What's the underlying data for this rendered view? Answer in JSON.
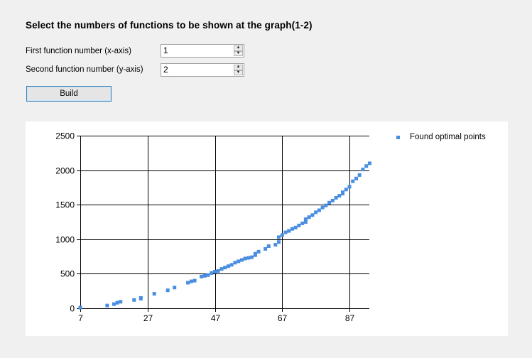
{
  "form": {
    "heading": "Select the numbers of functions to be shown at the graph(1-2)",
    "first_label": "First function number (x-axis)",
    "first_value": "1",
    "second_label": "Second function number (y-axis)",
    "second_value": "2",
    "build_label": "Build"
  },
  "icons": {
    "spin_up": "arrow-up-icon",
    "spin_down": "arrow-down-icon"
  },
  "colors": {
    "series": "#4a8ee0",
    "background": "#f0f0f0",
    "chart_background": "#ffffff",
    "grid": "#000000"
  },
  "chart_data": {
    "type": "scatter",
    "x_ticks": [
      7,
      27,
      47,
      67,
      87
    ],
    "y_ticks": [
      0,
      500,
      1000,
      1500,
      2000,
      2500
    ],
    "xlim": [
      7,
      93
    ],
    "ylim": [
      0,
      2500
    ],
    "grid": true,
    "legend_position": "top-right",
    "series": [
      {
        "name": "Found optimal points",
        "color": "#4a8ee0",
        "points": [
          [
            7,
            10
          ],
          [
            15,
            40
          ],
          [
            17,
            60
          ],
          [
            18,
            80
          ],
          [
            19,
            95
          ],
          [
            23,
            120
          ],
          [
            25,
            140
          ],
          [
            25,
            150
          ],
          [
            29,
            210
          ],
          [
            33,
            260
          ],
          [
            35,
            300
          ],
          [
            39,
            370
          ],
          [
            40,
            390
          ],
          [
            41,
            400
          ],
          [
            43,
            460
          ],
          [
            44,
            470
          ],
          [
            45,
            480
          ],
          [
            46,
            510
          ],
          [
            47,
            530
          ],
          [
            48,
            540
          ],
          [
            49,
            570
          ],
          [
            50,
            590
          ],
          [
            51,
            610
          ],
          [
            52,
            630
          ],
          [
            53,
            660
          ],
          [
            54,
            680
          ],
          [
            55,
            700
          ],
          [
            56,
            720
          ],
          [
            57,
            730
          ],
          [
            58,
            740
          ],
          [
            59,
            770
          ],
          [
            59,
            790
          ],
          [
            60,
            820
          ],
          [
            62,
            860
          ],
          [
            63,
            900
          ],
          [
            65,
            920
          ],
          [
            66,
            960
          ],
          [
            66,
            1030
          ],
          [
            67,
            1060
          ],
          [
            68,
            1100
          ],
          [
            69,
            1120
          ],
          [
            70,
            1150
          ],
          [
            71,
            1170
          ],
          [
            72,
            1200
          ],
          [
            73,
            1230
          ],
          [
            74,
            1250
          ],
          [
            74,
            1290
          ],
          [
            75,
            1320
          ],
          [
            76,
            1350
          ],
          [
            77,
            1390
          ],
          [
            78,
            1420
          ],
          [
            79,
            1460
          ],
          [
            80,
            1490
          ],
          [
            81,
            1530
          ],
          [
            82,
            1560
          ],
          [
            83,
            1600
          ],
          [
            84,
            1630
          ],
          [
            85,
            1660
          ],
          [
            85,
            1680
          ],
          [
            86,
            1720
          ],
          [
            87,
            1760
          ],
          [
            88,
            1840
          ],
          [
            89,
            1880
          ],
          [
            90,
            1930
          ],
          [
            91,
            2010
          ],
          [
            92,
            2060
          ],
          [
            93,
            2100
          ]
        ]
      }
    ]
  }
}
